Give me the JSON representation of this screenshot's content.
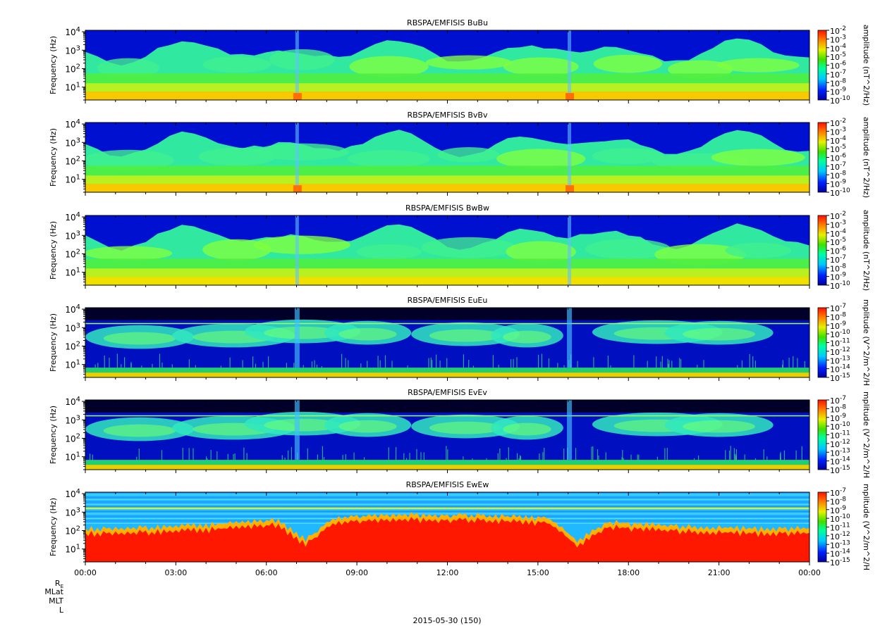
{
  "date_label": "2015-05-30 (150)",
  "ephem_labels": [
    "RE",
    "MLat",
    "MLT",
    "L"
  ],
  "chart_data": [
    {
      "type": "heatmap",
      "title": "RBSPA/EMFISIS  BuBu",
      "ylabel": "Frequency (Hz)",
      "yscale": "log",
      "ylim": [
        2,
        12000
      ],
      "yticks": [
        "10^4",
        "10^3",
        "10^2",
        "10^1"
      ],
      "xlim": [
        "00:00",
        "24:00"
      ],
      "colorbar": {
        "label": "amplitude (nT^2/Hz)",
        "scale": "log",
        "range": [
          -10,
          -2
        ],
        "ticks": [
          "10^-2",
          "10^-3",
          "10^-4",
          "10^-5",
          "10^-6",
          "10^-7",
          "10^-8",
          "10^-9",
          "10^-10"
        ]
      },
      "style": "B"
    },
    {
      "type": "heatmap",
      "title": "RBSPA/EMFISIS  BvBv",
      "ylabel": "Frequency (Hz)",
      "yscale": "log",
      "ylim": [
        2,
        12000
      ],
      "yticks": [
        "10^4",
        "10^3",
        "10^2",
        "10^1"
      ],
      "xlim": [
        "00:00",
        "24:00"
      ],
      "colorbar": {
        "label": "amplitude (nT^2/Hz)",
        "scale": "log",
        "range": [
          -10,
          -2
        ],
        "ticks": [
          "10^-2",
          "10^-3",
          "10^-4",
          "10^-5",
          "10^-6",
          "10^-7",
          "10^-8",
          "10^-9",
          "10^-10"
        ]
      },
      "style": "B"
    },
    {
      "type": "heatmap",
      "title": "RBSPA/EMFISIS  BwBw",
      "ylabel": "Frequency (Hz)",
      "yscale": "log",
      "ylim": [
        2,
        12000
      ],
      "yticks": [
        "10^4",
        "10^3",
        "10^2",
        "10^1"
      ],
      "xlim": [
        "00:00",
        "24:00"
      ],
      "colorbar": {
        "label": "amplitude (nT^2/Hz)",
        "scale": "log",
        "range": [
          -10,
          -2
        ],
        "ticks": [
          "10^-2",
          "10^-3",
          "10^-4",
          "10^-5",
          "10^-6",
          "10^-7",
          "10^-8",
          "10^-9",
          "10^-10"
        ]
      },
      "style": "Bw"
    },
    {
      "type": "heatmap",
      "title": "RBSPA/EMFISIS  EuEu",
      "ylabel": "Frequency (Hz)",
      "yscale": "log",
      "ylim": [
        2,
        12000
      ],
      "yticks": [
        "10^4",
        "10^3",
        "10^2",
        "10^1"
      ],
      "xlim": [
        "00:00",
        "24:00"
      ],
      "colorbar": {
        "label": "mplitude (V^2/m^2/H",
        "scale": "log",
        "range": [
          -15,
          -7
        ],
        "ticks": [
          "10^-7",
          "10^-8",
          "10^-9",
          "10^-10",
          "10^-11",
          "10^-12",
          "10^-13",
          "10^-14",
          "10^-15"
        ]
      },
      "style": "E"
    },
    {
      "type": "heatmap",
      "title": "RBSPA/EMFISIS  EvEv",
      "ylabel": "Frequency (Hz)",
      "yscale": "log",
      "ylim": [
        2,
        12000
      ],
      "yticks": [
        "10^4",
        "10^3",
        "10^2",
        "10^1"
      ],
      "xlim": [
        "00:00",
        "24:00"
      ],
      "colorbar": {
        "label": "mplitude (V^2/m^2/H",
        "scale": "log",
        "range": [
          -15,
          -7
        ],
        "ticks": [
          "10^-7",
          "10^-8",
          "10^-9",
          "10^-10",
          "10^-11",
          "10^-12",
          "10^-13",
          "10^-14",
          "10^-15"
        ]
      },
      "style": "E"
    },
    {
      "type": "heatmap",
      "title": "RBSPA/EMFISIS  EwEw",
      "ylabel": "Frequency (Hz)",
      "yscale": "log",
      "ylim": [
        2,
        12000
      ],
      "yticks": [
        "10^4",
        "10^3",
        "10^2",
        "10^1"
      ],
      "xlim": [
        "00:00",
        "24:00"
      ],
      "xticks": [
        "00:00",
        "03:00",
        "06:00",
        "09:00",
        "12:00",
        "15:00",
        "18:00",
        "21:00",
        "00:00"
      ],
      "colorbar": {
        "label": "mplitude (V^2/m^2/H",
        "scale": "log",
        "range": [
          -15,
          -7
        ],
        "ticks": [
          "10^-7",
          "10^-8",
          "10^-9",
          "10^-10",
          "10^-11",
          "10^-12",
          "10^-13",
          "10^-14",
          "10^-15"
        ]
      },
      "style": "Ew"
    }
  ]
}
